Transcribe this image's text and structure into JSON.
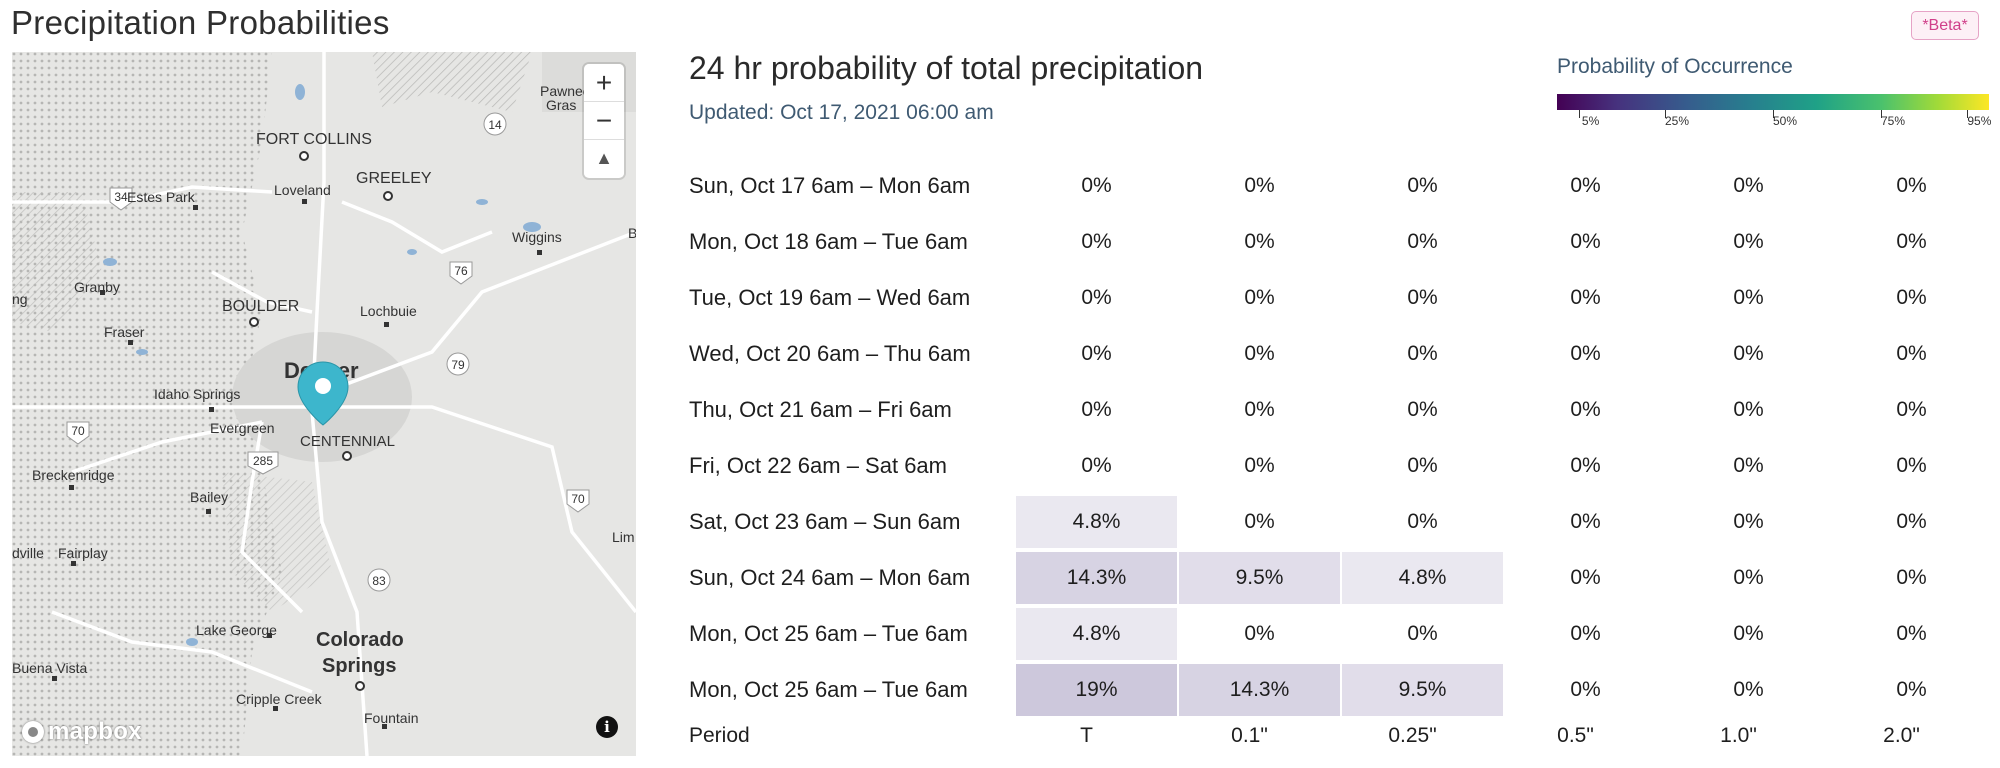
{
  "page": {
    "title": "Precipitation Probabilities",
    "badge": "*Beta*"
  },
  "map": {
    "zoom_in_label": "+",
    "zoom_out_label": "−",
    "compass_label": "▲",
    "logo_text": "mapbox",
    "info_label": "i",
    "places": [
      {
        "name": "FORT COLLINS",
        "kind": "city"
      },
      {
        "name": "GREELEY",
        "kind": "city"
      },
      {
        "name": "Estes Park",
        "kind": "town"
      },
      {
        "name": "Loveland",
        "kind": "town"
      },
      {
        "name": "Wiggins",
        "kind": "town"
      },
      {
        "name": "Granby",
        "kind": "town"
      },
      {
        "name": "BOULDER",
        "kind": "city"
      },
      {
        "name": "Lochbuie",
        "kind": "town"
      },
      {
        "name": "Fraser",
        "kind": "town"
      },
      {
        "name": "Idaho Springs",
        "kind": "town"
      },
      {
        "name": "Denver",
        "kind": "bigcity"
      },
      {
        "name": "Evergreen",
        "kind": "town"
      },
      {
        "name": "CENTENNIAL",
        "kind": "city"
      },
      {
        "name": "Breckenridge",
        "kind": "town"
      },
      {
        "name": "Bailey",
        "kind": "town"
      },
      {
        "name": "Fairplay",
        "kind": "town"
      },
      {
        "name": "Lake George",
        "kind": "town"
      },
      {
        "name": "Colorado",
        "kind": "bigcity"
      },
      {
        "name": "Springs",
        "kind": "bigcity"
      },
      {
        "name": "Buena Vista",
        "kind": "town"
      },
      {
        "name": "Cripple Creek",
        "kind": "town"
      },
      {
        "name": "Fountain",
        "kind": "town"
      },
      {
        "name": "Pawnee",
        "kind": "park"
      },
      {
        "name": "Gras",
        "kind": "park"
      },
      {
        "name": "ng",
        "kind": "town"
      },
      {
        "name": "dville",
        "kind": "town"
      },
      {
        "name": "B",
        "kind": "town"
      },
      {
        "name": "Lim",
        "kind": "town"
      }
    ],
    "shields": [
      "14",
      "34",
      "76",
      "79",
      "70",
      "285",
      "70",
      "83"
    ]
  },
  "chart": {
    "title": "24 hr probability of total precipitation",
    "updated": "Updated: Oct 17, 2021 06:00 am"
  },
  "legend": {
    "title": "Probability of Occurrence",
    "ticks": [
      {
        "label": "5%",
        "value": 5
      },
      {
        "label": "25%",
        "value": 25
      },
      {
        "label": "50%",
        "value": 50
      },
      {
        "label": "75%",
        "value": 75
      },
      {
        "label": "95%",
        "value": 95
      }
    ],
    "colors": [
      "#440154",
      "#46327e",
      "#365c8d",
      "#277f8e",
      "#1fa187",
      "#4ac16d",
      "#a0da39",
      "#fde725"
    ]
  },
  "chart_data": {
    "type": "table",
    "row_header": "Period",
    "columns": [
      "T",
      "0.1\"",
      "0.25\"",
      "0.5\"",
      "1.0\"",
      "2.0\""
    ],
    "rows": [
      {
        "period": "Sun, Oct 17 6am – Mon 6am",
        "values": [
          0,
          0,
          0,
          0,
          0,
          0
        ],
        "labels": [
          "0%",
          "0%",
          "0%",
          "0%",
          "0%",
          "0%"
        ]
      },
      {
        "period": "Mon, Oct 18 6am – Tue 6am",
        "values": [
          0,
          0,
          0,
          0,
          0,
          0
        ],
        "labels": [
          "0%",
          "0%",
          "0%",
          "0%",
          "0%",
          "0%"
        ]
      },
      {
        "period": "Tue, Oct 19 6am – Wed 6am",
        "values": [
          0,
          0,
          0,
          0,
          0,
          0
        ],
        "labels": [
          "0%",
          "0%",
          "0%",
          "0%",
          "0%",
          "0%"
        ]
      },
      {
        "period": "Wed, Oct 20 6am – Thu 6am",
        "values": [
          0,
          0,
          0,
          0,
          0,
          0
        ],
        "labels": [
          "0%",
          "0%",
          "0%",
          "0%",
          "0%",
          "0%"
        ]
      },
      {
        "period": "Thu, Oct 21 6am – Fri 6am",
        "values": [
          0,
          0,
          0,
          0,
          0,
          0
        ],
        "labels": [
          "0%",
          "0%",
          "0%",
          "0%",
          "0%",
          "0%"
        ]
      },
      {
        "period": "Fri, Oct 22 6am – Sat 6am",
        "values": [
          0,
          0,
          0,
          0,
          0,
          0
        ],
        "labels": [
          "0%",
          "0%",
          "0%",
          "0%",
          "0%",
          "0%"
        ]
      },
      {
        "period": "Sat, Oct 23 6am – Sun 6am",
        "values": [
          4.8,
          0,
          0,
          0,
          0,
          0
        ],
        "labels": [
          "4.8%",
          "0%",
          "0%",
          "0%",
          "0%",
          "0%"
        ]
      },
      {
        "period": "Sun, Oct 24 6am – Mon 6am",
        "values": [
          14.3,
          9.5,
          4.8,
          0,
          0,
          0
        ],
        "labels": [
          "14.3%",
          "9.5%",
          "4.8%",
          "0%",
          "0%",
          "0%"
        ]
      },
      {
        "period": "Mon, Oct 25 6am – Tue 6am",
        "values": [
          4.8,
          0,
          0,
          0,
          0,
          0
        ],
        "labels": [
          "4.8%",
          "0%",
          "0%",
          "0%",
          "0%",
          "0%"
        ]
      },
      {
        "period": "Mon, Oct 25 6am – Tue 6am",
        "values": [
          19,
          14.3,
          9.5,
          0,
          0,
          0
        ],
        "labels": [
          "19%",
          "14.3%",
          "9.5%",
          "0%",
          "0%",
          "0%"
        ]
      }
    ]
  }
}
